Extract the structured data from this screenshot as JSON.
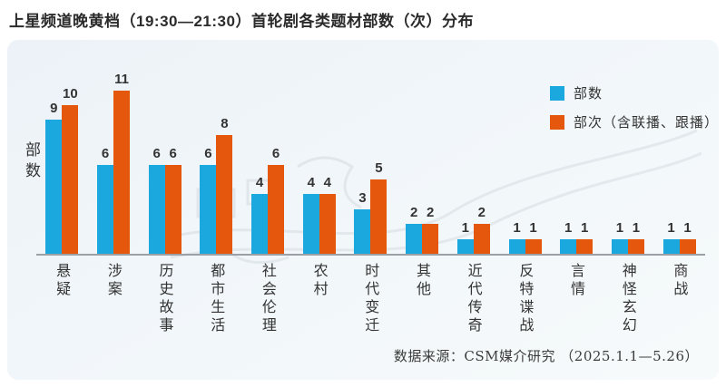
{
  "title": "上星频道晚黄档（19:30—21:30）首轮剧各类题材部数（次）分布",
  "source": "数据来源：CSM媒介研究 （2025.1.1—5.26）",
  "colors": {
    "series1": "#1BA8DE",
    "series2": "#E4570C",
    "axis": "#9aa0a5",
    "panel_bg": "#eff4f8"
  },
  "chart_data": {
    "type": "bar",
    "title": "上星频道晚黄档（19:30—21:30）首轮剧各类题材部数（次）分布",
    "xlabel": "",
    "ylabel": "部数",
    "ylim": [
      0,
      11
    ],
    "grid": false,
    "legend_position": "top-right",
    "categories": [
      "悬疑",
      "涉案",
      "历史故事",
      "都市生活",
      "社会伦理",
      "农村",
      "时代变迁",
      "其他",
      "近代传奇",
      "反特谍战",
      "言情",
      "神怪玄幻",
      "商战"
    ],
    "series": [
      {
        "name": "部数",
        "color": "#1BA8DE",
        "values": [
          9,
          6,
          6,
          6,
          4,
          4,
          3,
          2,
          1,
          1,
          1,
          1,
          1
        ]
      },
      {
        "name": "部次（含联播、跟播）",
        "color": "#E4570C",
        "values": [
          10,
          11,
          6,
          8,
          6,
          4,
          5,
          2,
          2,
          1,
          1,
          1,
          1
        ]
      }
    ]
  }
}
